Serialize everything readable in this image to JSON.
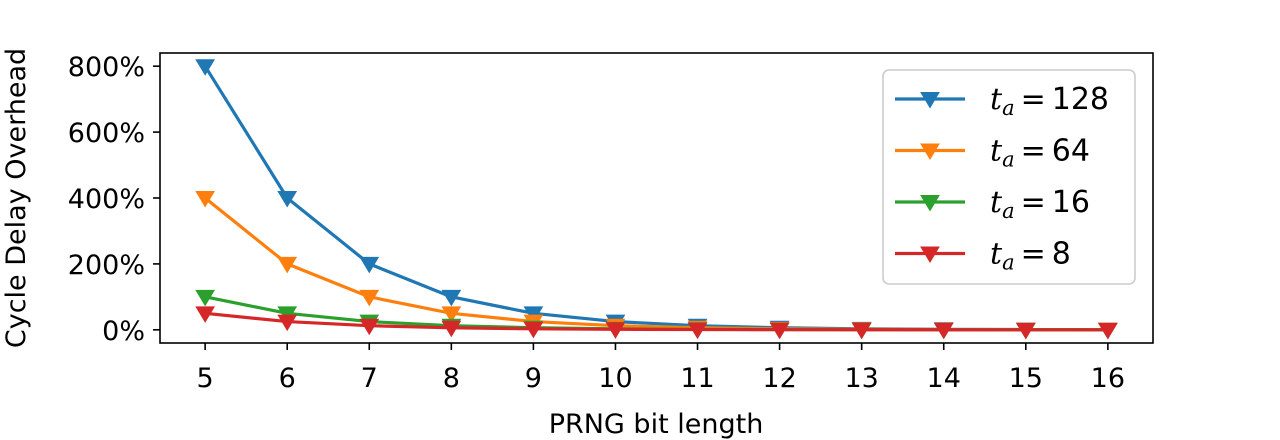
{
  "chart_data": {
    "type": "line",
    "xlabel": "PRNG bit length",
    "ylabel": "Cycle Delay Overhead",
    "x": [
      5,
      6,
      7,
      8,
      9,
      10,
      11,
      12,
      13,
      14,
      15,
      16
    ],
    "xlim": [
      4.45,
      16.55
    ],
    "ylim": [
      -40,
      840
    ],
    "yticks": [
      0,
      200,
      400,
      600,
      800
    ],
    "ytick_labels": [
      "0%",
      "200%",
      "400%",
      "600%",
      "800%"
    ],
    "xtick_labels": [
      "5",
      "6",
      "7",
      "8",
      "9",
      "10",
      "11",
      "12",
      "13",
      "14",
      "15",
      "16"
    ],
    "legend_position": "top-right",
    "marker": "triangle-down",
    "series": [
      {
        "name": "t_a = 128",
        "var": "t",
        "sub": "a",
        "eq": "=",
        "num": "128",
        "color": "#1f77b4",
        "values": [
          800,
          400,
          200,
          100,
          50,
          25,
          12.5,
          6.25,
          3.1,
          1.6,
          0.8,
          0.4
        ]
      },
      {
        "name": "t_a = 64",
        "var": "t",
        "sub": "a",
        "eq": "=",
        "num": "64",
        "color": "#ff7f0e",
        "values": [
          400,
          200,
          100,
          50,
          25,
          12.5,
          6.25,
          3.1,
          1.6,
          0.8,
          0.4,
          0.2
        ]
      },
      {
        "name": "t_a = 16",
        "var": "t",
        "sub": "a",
        "eq": "=",
        "num": "16",
        "color": "#2ca02c",
        "values": [
          100,
          50,
          25,
          12.5,
          6.25,
          3.1,
          1.6,
          0.8,
          0.4,
          0.2,
          0.1,
          0.05
        ]
      },
      {
        "name": "t_a = 8",
        "var": "t",
        "sub": "a",
        "eq": "=",
        "num": "8",
        "color": "#d62728",
        "values": [
          50,
          25,
          12.5,
          6.25,
          3.1,
          1.6,
          0.8,
          0.4,
          0.2,
          0.1,
          0.05,
          0.02
        ]
      }
    ]
  }
}
